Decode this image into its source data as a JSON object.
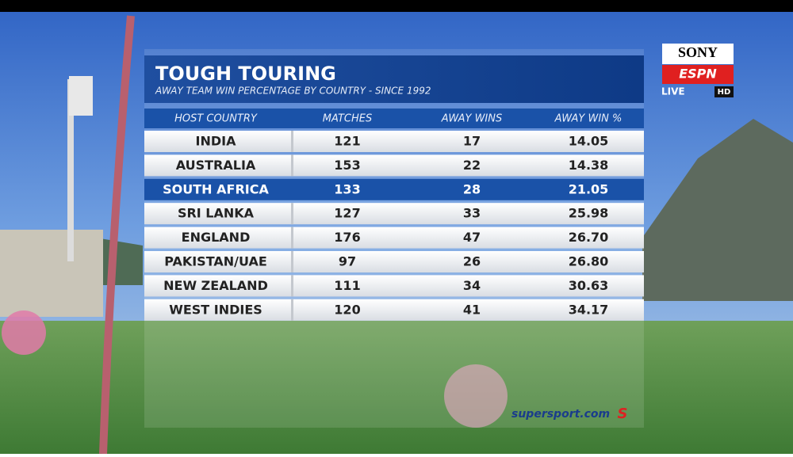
{
  "header": {
    "title": "TOUGH TOURING",
    "subtitle": "AWAY TEAM WIN PERCENTAGE BY COUNTRY - SINCE 1992"
  },
  "table": {
    "columns": [
      "HOST COUNTRY",
      "MATCHES",
      "AWAY WINS",
      "AWAY WIN %"
    ],
    "rows": [
      [
        "INDIA",
        "121",
        "17",
        "14.05"
      ],
      [
        "AUSTRALIA",
        "153",
        "22",
        "14.38"
      ],
      [
        "SOUTH AFRICA",
        "133",
        "28",
        "21.05"
      ],
      [
        "SRI LANKA",
        "127",
        "33",
        "25.98"
      ],
      [
        "ENGLAND",
        "176",
        "47",
        "26.70"
      ],
      [
        "PAKISTAN/UAE",
        "97",
        "26",
        "26.80"
      ],
      [
        "NEW ZEALAND",
        "111",
        "34",
        "30.63"
      ],
      [
        "WEST INDIES",
        "120",
        "41",
        "34.17"
      ]
    ]
  },
  "logo": {
    "brand": "SONY",
    "channel": "ESPN",
    "live": "LIVE",
    "hd": "HD"
  },
  "footer": {
    "site": "supersport.com",
    "mark": "S"
  }
}
